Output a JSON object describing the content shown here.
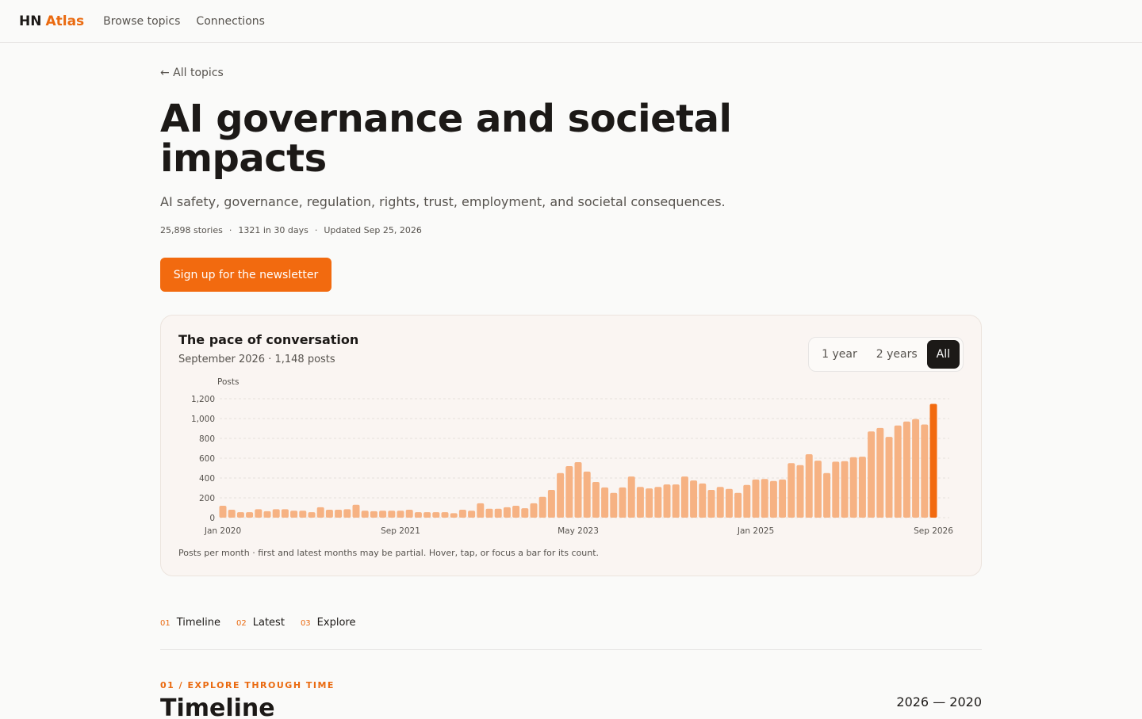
{
  "nav": {
    "brand_prefix": "HN",
    "brand_suffix": "Atlas",
    "links": [
      "Browse topics",
      "Connections"
    ]
  },
  "back_link": "← All topics",
  "title": "AI governance and societal impacts",
  "description": "AI safety, governance, regulation, rights, trust, employment, and societal consequences.",
  "meta": [
    "25,898 stories",
    "1321 in 30 days",
    "Updated Sep 25, 2026"
  ],
  "meta_separator": "·",
  "cta": "Sign up for the newsletter",
  "chart_data": {
    "type": "bar",
    "title": "The pace of conversation",
    "subtitle": "September 2026 · 1,148 posts",
    "range_options": [
      "1 year",
      "2 years",
      "All"
    ],
    "y_label": "Posts",
    "footnote": "Posts per month · first and latest months may be partial. Hover, tap, or focus a bar for its count.",
    "categories": [
      "Jan 2020",
      null,
      null,
      null,
      null,
      null,
      null,
      null,
      null,
      null,
      null,
      null,
      null,
      null,
      null,
      null,
      null,
      null,
      null,
      null,
      "Sep 2021",
      null,
      null,
      null,
      null,
      null,
      null,
      null,
      null,
      null,
      null,
      null,
      null,
      null,
      null,
      null,
      null,
      null,
      null,
      null,
      "May 2023",
      null,
      null,
      null,
      null,
      null,
      null,
      null,
      null,
      null,
      null,
      null,
      null,
      null,
      null,
      null,
      null,
      null,
      null,
      null,
      "Jan 2025",
      null,
      null,
      null,
      null,
      null,
      null,
      null,
      null,
      null,
      null,
      null,
      null,
      null,
      null,
      null,
      null,
      null,
      null,
      null,
      "Sep 2026"
    ],
    "values": [
      120,
      80,
      55,
      55,
      85,
      65,
      85,
      85,
      70,
      70,
      55,
      105,
      80,
      80,
      85,
      130,
      70,
      65,
      70,
      70,
      70,
      80,
      55,
      55,
      55,
      55,
      45,
      80,
      70,
      145,
      90,
      90,
      105,
      120,
      95,
      145,
      210,
      280,
      450,
      520,
      560,
      465,
      360,
      305,
      250,
      305,
      415,
      310,
      295,
      310,
      335,
      335,
      415,
      375,
      345,
      280,
      310,
      290,
      250,
      330,
      385,
      390,
      370,
      385,
      550,
      530,
      640,
      575,
      450,
      565,
      570,
      610,
      615,
      870,
      905,
      815,
      930,
      970,
      995,
      940,
      1148
    ],
    "color": "#f6b283",
    "latest_color": "#f26a0f",
    "ylim": [
      0,
      1200
    ],
    "yticks": [
      0,
      200,
      400,
      600,
      800,
      {
        "value": 1000,
        "label": "1,000"
      },
      {
        "value": 1200,
        "label": "1,200"
      }
    ],
    "grid": true
  },
  "tabs": [
    {
      "number": "01",
      "label": "Timeline"
    },
    {
      "number": "02",
      "label": "Latest"
    },
    {
      "number": "03",
      "label": "Explore"
    }
  ],
  "section": {
    "eyebrow": "01 / EXPLORE THROUGH TIME",
    "title": "Timeline",
    "range": "2026 — 2020"
  }
}
